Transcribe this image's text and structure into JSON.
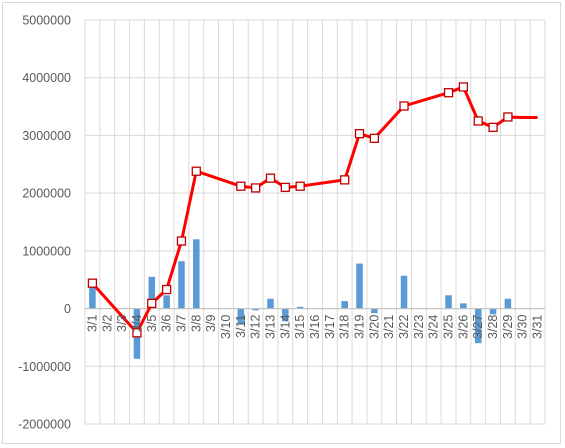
{
  "chart_data": {
    "type": "bar+line",
    "title": "",
    "xlabel": "",
    "ylabel": "",
    "ylim": [
      -2000000,
      5000000
    ],
    "yticks": [
      5000000,
      4000000,
      3000000,
      2000000,
      1000000,
      0,
      -1000000,
      -2000000
    ],
    "ytick_labels": [
      "5000000",
      "4000000",
      "3000000",
      "2000000",
      "1000000",
      "0",
      "-1000000",
      "-2000000"
    ],
    "categories": [
      "3/1",
      "3/2",
      "3/3",
      "3/4",
      "3/5",
      "3/6",
      "3/7",
      "3/8",
      "3/9",
      "3/10",
      "3/11",
      "3/12",
      "3/13",
      "3/14",
      "3/15",
      "3/16",
      "3/17",
      "3/18",
      "3/19",
      "3/20",
      "3/21",
      "3/22",
      "3/23",
      "3/24",
      "3/25",
      "3/26",
      "3/27",
      "3/28",
      "3/29",
      "3/30",
      "3/31"
    ],
    "grid": "vertical and horizontal gridlines",
    "legend": "none",
    "colors": {
      "bars": "#5B9BD5",
      "line": "#FF0000",
      "marker": "#C00000",
      "grid": "#D9D9D9",
      "axis": "#BFBFBF"
    },
    "series": [
      {
        "type": "bar",
        "values": [
          400000,
          null,
          null,
          -870000,
          550000,
          230000,
          820000,
          1200000,
          null,
          null,
          -270000,
          -30000,
          170000,
          -220000,
          30000,
          null,
          null,
          130000,
          780000,
          -80000,
          null,
          570000,
          null,
          null,
          230000,
          90000,
          -600000,
          -100000,
          170000,
          null,
          null
        ]
      },
      {
        "type": "line",
        "values": [
          440000,
          null,
          null,
          -420000,
          90000,
          330000,
          1170000,
          2380000,
          null,
          null,
          2120000,
          2090000,
          2260000,
          2100000,
          2120000,
          null,
          null,
          2230000,
          3030000,
          2950000,
          null,
          3510000,
          null,
          null,
          3740000,
          3840000,
          3250000,
          3140000,
          3320000,
          3310000,
          3310000
        ],
        "markers": [
          true,
          false,
          false,
          true,
          true,
          true,
          true,
          true,
          false,
          false,
          true,
          true,
          true,
          true,
          true,
          false,
          false,
          true,
          true,
          true,
          false,
          true,
          false,
          false,
          true,
          true,
          true,
          true,
          true,
          false,
          false
        ]
      }
    ]
  }
}
